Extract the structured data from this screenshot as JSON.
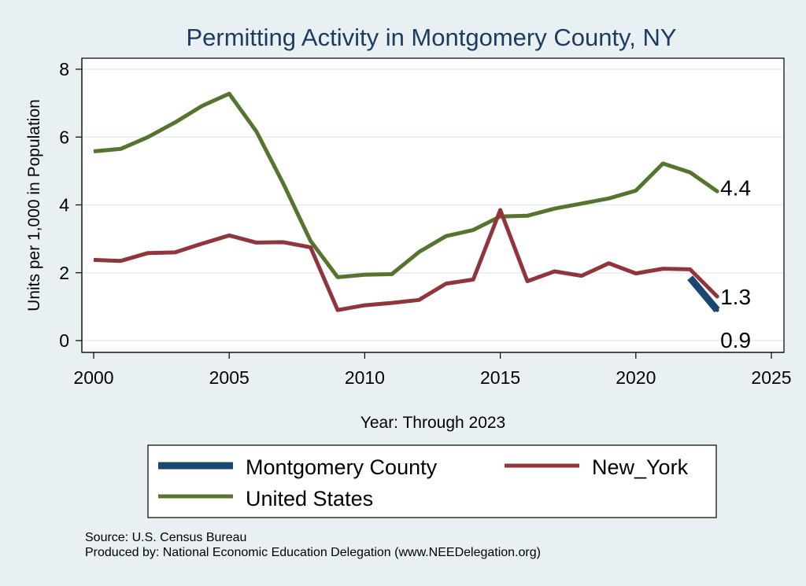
{
  "chart_data": {
    "type": "line",
    "title": "Permitting Activity in Montgomery County, NY",
    "xlabel": "Year: Through 2023",
    "ylabel": "Units per 1,000 in Population",
    "xlim": [
      2000,
      2025
    ],
    "ylim": [
      0,
      8
    ],
    "xticks": [
      2000,
      2005,
      2010,
      2015,
      2020,
      2025
    ],
    "yticks": [
      0,
      2,
      4,
      6,
      8
    ],
    "grid": true,
    "legend_position": "bottom",
    "series": [
      {
        "key": "montgomery",
        "name": "Montgomery County",
        "color": "#1a476f",
        "x": [
          2022,
          2023
        ],
        "y": [
          1.85,
          0.9
        ],
        "end_label": "0.9"
      },
      {
        "key": "new-york",
        "name": "New_York",
        "color": "#90353b",
        "x": [
          2000,
          2001,
          2002,
          2003,
          2004,
          2005,
          2006,
          2007,
          2008,
          2009,
          2010,
          2011,
          2012,
          2013,
          2014,
          2015,
          2016,
          2017,
          2018,
          2019,
          2020,
          2021,
          2022,
          2023
        ],
        "y": [
          2.38,
          2.35,
          2.58,
          2.6,
          2.86,
          3.1,
          2.89,
          2.9,
          2.75,
          0.9,
          1.04,
          1.11,
          1.2,
          1.68,
          1.8,
          3.85,
          1.75,
          2.04,
          1.91,
          2.28,
          1.98,
          2.12,
          2.1,
          1.3
        ],
        "end_label": "1.3"
      },
      {
        "key": "united-states",
        "name": "United States",
        "color": "#55752f",
        "x": [
          2000,
          2001,
          2002,
          2003,
          2004,
          2005,
          2006,
          2007,
          2008,
          2009,
          2010,
          2011,
          2012,
          2013,
          2014,
          2015,
          2016,
          2017,
          2018,
          2019,
          2020,
          2021,
          2022,
          2023
        ],
        "y": [
          5.58,
          5.65,
          6.0,
          6.43,
          6.92,
          7.28,
          6.17,
          4.62,
          2.94,
          1.87,
          1.94,
          1.96,
          2.61,
          3.08,
          3.26,
          3.66,
          3.68,
          3.89,
          4.04,
          4.19,
          4.42,
          5.22,
          4.96,
          4.4
        ],
        "end_label": "4.4"
      }
    ]
  },
  "footer": {
    "source": "Source: U.S. Census Bureau",
    "produced_by": "Produced by: National Economic Education Delegation (www.NEEDelegation.org)"
  }
}
